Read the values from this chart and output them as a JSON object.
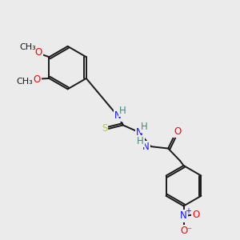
{
  "background_color": "#ebebeb",
  "bond_color": "#1a1a1a",
  "bond_width": 1.4,
  "atom_colors": {
    "N": "#1414ff",
    "O": "#ff0000",
    "S": "#cccc00",
    "H": "#3a8a8a",
    "C": "#1a1a1a"
  },
  "font_size": 8.5
}
